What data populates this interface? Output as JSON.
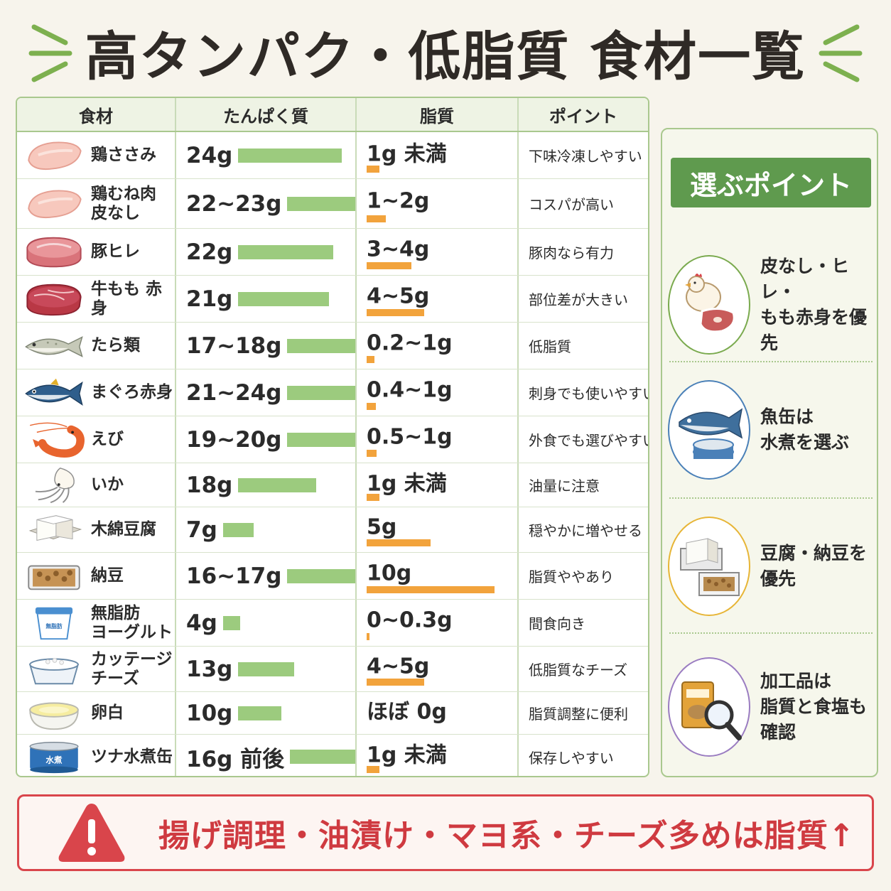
{
  "title": "高タンパク・低脂質 食材一覧",
  "table": {
    "headers": [
      "食材",
      "たんぱく質",
      "脂質",
      "ポイント"
    ],
    "rows": [
      {
        "food": "鶏ささみ",
        "icon": "chicken-breast-icon",
        "protein": "24g",
        "protein_g": 24,
        "fat": "1g 未満",
        "fat_g": 1,
        "point": "下味冷凍しやすい"
      },
      {
        "food": "鶏むね肉\n皮なし",
        "icon": "chicken-breast-icon",
        "protein": "22~23g",
        "protein_g": 22.5,
        "fat": "1~2g",
        "fat_g": 1.5,
        "point": "コスパが高い"
      },
      {
        "food": "豚ヒレ",
        "icon": "pork-icon",
        "protein": "22g",
        "protein_g": 22,
        "fat": "3~4g",
        "fat_g": 3.5,
        "point": "豚肉なら有力"
      },
      {
        "food": "牛もも 赤身",
        "icon": "beef-icon",
        "protein": "21g",
        "protein_g": 21,
        "fat": "4~5g",
        "fat_g": 4.5,
        "point": "部位差が大きい"
      },
      {
        "food": "たら類",
        "icon": "cod-fish-icon",
        "protein": "17~18g",
        "protein_g": 17.5,
        "fat": "0.2~1g",
        "fat_g": 0.6,
        "point": "低脂質"
      },
      {
        "food": "まぐろ赤身",
        "icon": "tuna-fish-icon",
        "protein": "21~24g",
        "protein_g": 22.5,
        "fat": "0.4~1g",
        "fat_g": 0.7,
        "point": "刺身でも使いやすい"
      },
      {
        "food": "えび",
        "icon": "shrimp-icon",
        "protein": "19~20g",
        "protein_g": 19.5,
        "fat": "0.5~1g",
        "fat_g": 0.75,
        "point": "外食でも選びやすい"
      },
      {
        "food": "いか",
        "icon": "squid-icon",
        "protein": "18g",
        "protein_g": 18,
        "fat": "1g 未満",
        "fat_g": 1,
        "point": "油量に注意"
      },
      {
        "food": "木綿豆腐",
        "icon": "tofu-icon",
        "protein": "7g",
        "protein_g": 7,
        "fat": "5g",
        "fat_g": 5,
        "point": "穏やかに増やせる"
      },
      {
        "food": "納豆",
        "icon": "natto-icon",
        "protein": "16~17g",
        "protein_g": 16.5,
        "fat": "10g",
        "fat_g": 10,
        "point": "脂質ややあり"
      },
      {
        "food": "無脂肪\nヨーグルト",
        "icon": "yogurt-icon",
        "protein": "4g",
        "protein_g": 4,
        "fat": "0~0.3g",
        "fat_g": 0.15,
        "point": "間食向き"
      },
      {
        "food": "カッテージ\nチーズ",
        "icon": "cottage-cheese-icon",
        "protein": "13g",
        "protein_g": 13,
        "fat": "4~5g",
        "fat_g": 4.5,
        "point": "低脂質なチーズ"
      },
      {
        "food": "卵白",
        "icon": "egg-white-icon",
        "protein": "10g",
        "protein_g": 10,
        "fat": "ほぼ 0g",
        "fat_g": 0,
        "point": "脂質調整に便利"
      },
      {
        "food": "ツナ水煮缶",
        "icon": "tuna-can-icon",
        "protein": "16g 前後",
        "protein_g": 16,
        "fat": "1g 未満",
        "fat_g": 1,
        "point": "保存しやすい"
      }
    ],
    "icon_labels": {
      "yogurt": "無脂肪\nヨーグルト",
      "tuna_can": "水煮"
    }
  },
  "side": {
    "heading": "選ぶポイント",
    "tips": [
      {
        "text": "皮なし・ヒレ・\nもも赤身を優先",
        "icon": "chicken-and-meat-icon",
        "color": "#7aaa4e"
      },
      {
        "text": "魚缶は\n水煮を選ぶ",
        "icon": "fish-and-can-icon",
        "color": "#4a80b8"
      },
      {
        "text": "豆腐・納豆を\n優先",
        "icon": "tofu-and-natto-icon",
        "color": "#e7b536"
      },
      {
        "text": "加工品は\n脂質と食塩も\n確認",
        "icon": "package-magnifier-icon",
        "color": "#9a7cc1"
      }
    ]
  },
  "warning": {
    "text": "揚げ調理・油漬け・マヨ系・チーズ多めは脂質↑",
    "color": "#d9454b"
  },
  "colors": {
    "protein_bar": "#9ccb7e",
    "fat_bar": "#f2a33c",
    "border": "#a9c88e",
    "accent_green": "#5f9a4e"
  }
}
